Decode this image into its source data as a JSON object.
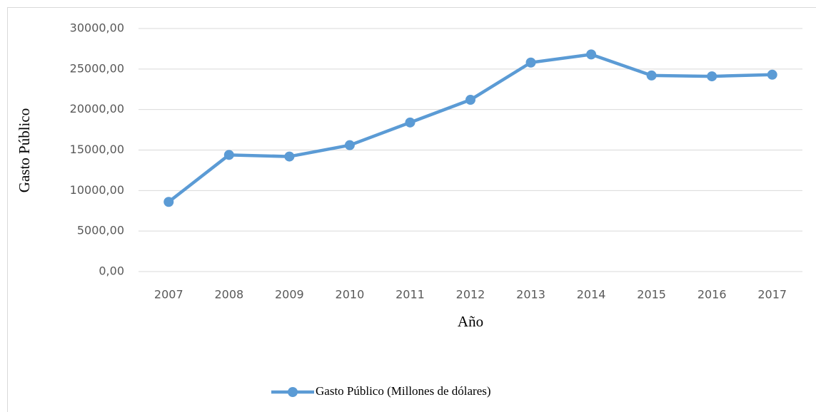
{
  "chart_data": {
    "type": "line",
    "x_label": "Año",
    "y_label": "Gasto Público",
    "categories": [
      "2007",
      "2008",
      "2009",
      "2010",
      "2011",
      "2012",
      "2013",
      "2014",
      "2015",
      "2016",
      "2017"
    ],
    "series": [
      {
        "name": "Gasto Público (Millones de dólares)",
        "color": "#5b9bd5",
        "values": [
          8600,
          14400,
          14200,
          15600,
          18400,
          21200,
          25800,
          26800,
          24200,
          24100,
          24300
        ]
      }
    ],
    "ylim": [
      0,
      30000
    ],
    "yticks": [
      {
        "value": 0,
        "label": "0,00"
      },
      {
        "value": 5000,
        "label": "5000,00"
      },
      {
        "value": 10000,
        "label": "10000,00"
      },
      {
        "value": 15000,
        "label": "15000,00"
      },
      {
        "value": 20000,
        "label": "20000,00"
      },
      {
        "value": 25000,
        "label": "25000,00"
      },
      {
        "value": 30000,
        "label": "30000,00"
      }
    ],
    "grid": true,
    "legend": "bottom"
  }
}
